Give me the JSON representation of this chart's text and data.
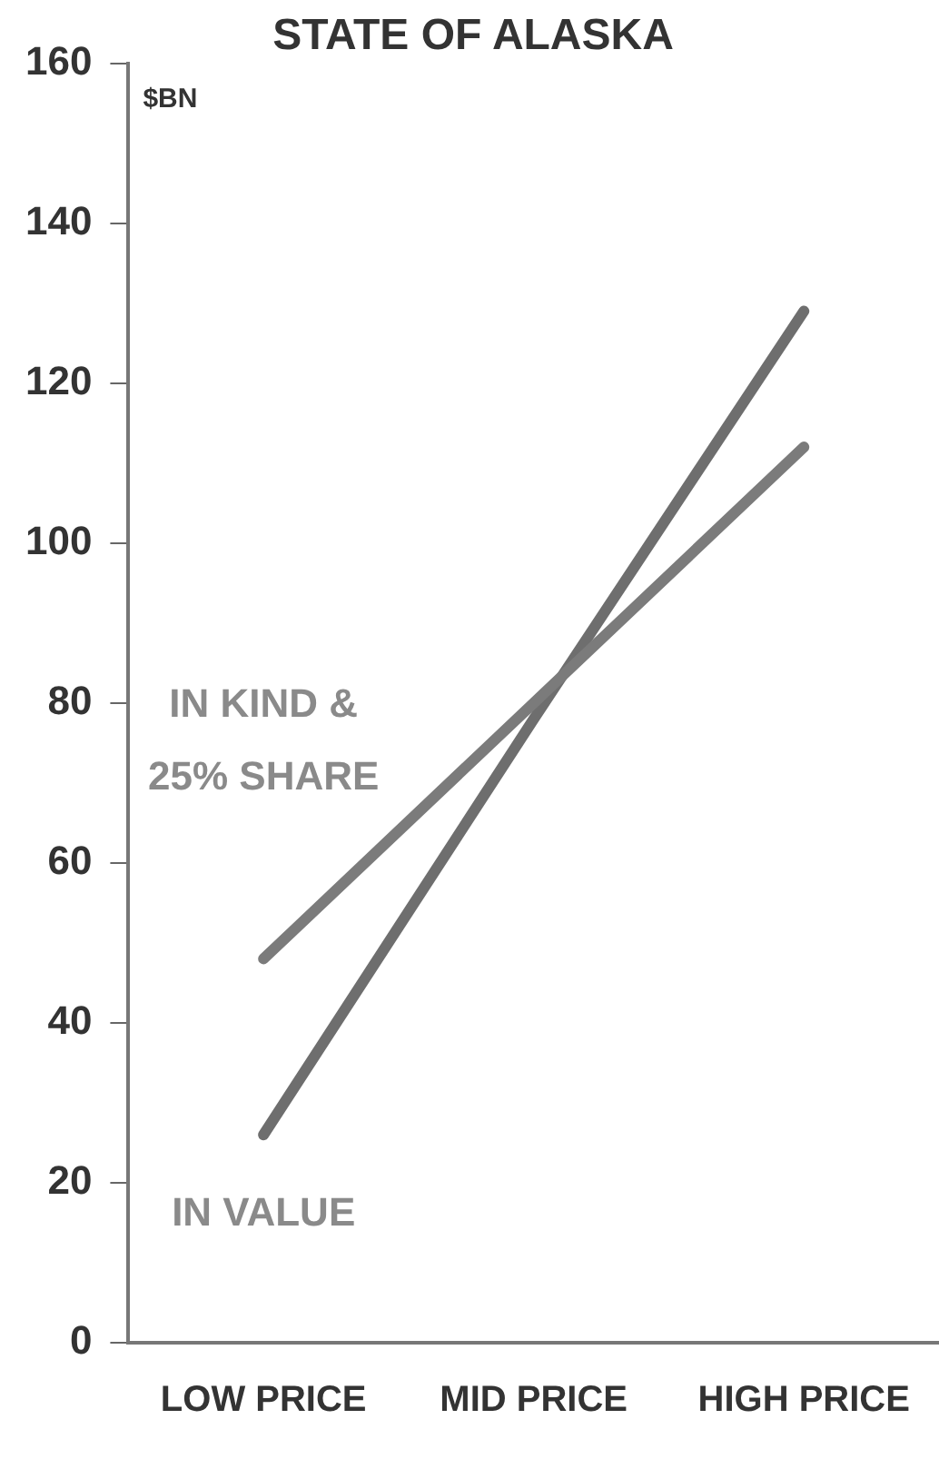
{
  "chart_data": {
    "type": "line",
    "title": "STATE OF ALASKA",
    "ylabel": "$BN",
    "categories": [
      "LOW PRICE",
      "MID PRICE",
      "HIGH PRICE"
    ],
    "series": [
      {
        "name": "IN KIND & 25% SHARE",
        "color": "#7b7b7b",
        "values": [
          48,
          80,
          112
        ]
      },
      {
        "name": "IN VALUE",
        "color": "#6e6e6e",
        "values": [
          26,
          78,
          129
        ]
      }
    ],
    "ylim": [
      0,
      160
    ],
    "yticks": [
      0,
      20,
      40,
      60,
      80,
      100,
      120,
      140,
      160
    ],
    "grid": false,
    "legend": false,
    "marker": "none",
    "line_style": "solid"
  }
}
